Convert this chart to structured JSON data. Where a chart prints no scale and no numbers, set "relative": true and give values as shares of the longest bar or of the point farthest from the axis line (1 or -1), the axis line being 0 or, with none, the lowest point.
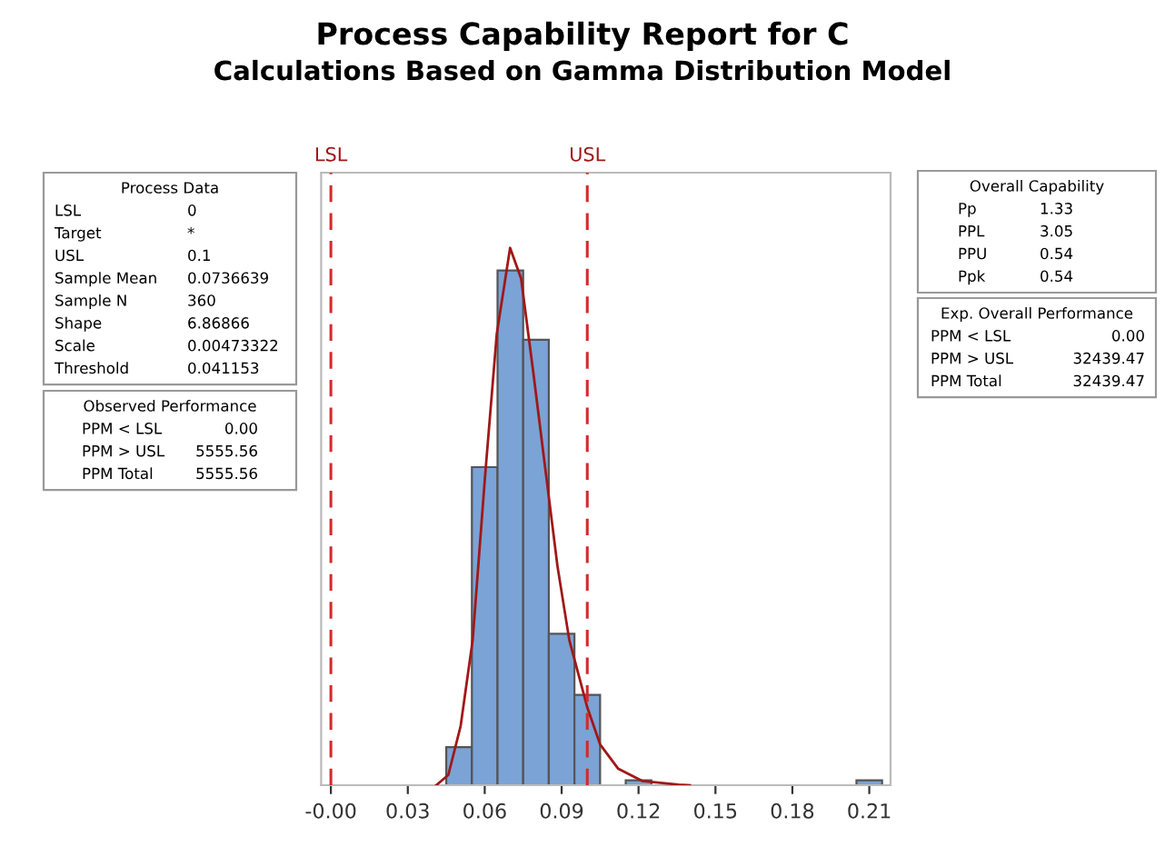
{
  "chart_data": {
    "type": "histogram",
    "title": "Process Capability Report for C",
    "subtitle": "Calculations Based on Gamma Distribution Model",
    "relative": true,
    "tick_labels": "x",
    "grid": false,
    "xlim": [
      -0.0038,
      0.2183
    ],
    "xticks": [
      {
        "value": 0,
        "label": "-0.00"
      },
      0.03,
      0.06,
      0.09,
      0.12,
      0.15,
      0.18,
      0.21
    ],
    "series": [
      {
        "type": "histogram",
        "color": "#7ba3d6",
        "bins": [
          0.045,
          0.055,
          0.065,
          0.075,
          0.085,
          0.095,
          0.105,
          0.115,
          0.125,
          0.135,
          0.145,
          0.155,
          0.165,
          0.175,
          0.185,
          0.195,
          0.205,
          0.215
        ],
        "values": [
          0.071,
          0.592,
          0.958,
          0.829,
          0.282,
          0.168,
          0,
          0.009,
          0,
          0,
          0,
          0,
          0,
          0,
          0,
          0,
          0.009
        ]
      },
      {
        "type": "line",
        "color": "#a01818",
        "x": [
          0.0411,
          0.0458,
          0.0506,
          0.0553,
          0.06,
          0.0647,
          0.0699,
          0.0742,
          0.0789,
          0.0836,
          0.0884,
          0.093,
          0.1,
          0.105,
          0.112,
          0.1214,
          0.1356,
          0.14
        ],
        "values": [
          0,
          0.019,
          0.11,
          0.27,
          0.567,
          0.84,
          1.0,
          0.943,
          0.77,
          0.59,
          0.407,
          0.27,
          0.145,
          0.076,
          0.031,
          0.008,
          0.001,
          0
        ]
      }
    ],
    "ref_lines": [
      {
        "axis": "x",
        "value": 0,
        "label": "LSL",
        "color": "#d42a2a",
        "line_style": "dashed"
      },
      {
        "axis": "x",
        "value": 0.1,
        "label": "USL",
        "color": "#d42a2a",
        "line_style": "dashed"
      }
    ],
    "annotations": [
      "Process Data\nLSL\t0\nTarget\t*\nUSL\t0.1\nSample Mean\t0.0736639\nSample N\t360\nShape\t6.86866\nScale\t0.00473322\nThreshold\t0.041153",
      "Observed Performance\nPPM < LSL\t0.00\nPPM > USL\t5555.56\nPPM Total\t5555.56",
      "Overall Capability\nPp\t1.33\nPPL\t3.05\nPPU\t0.54\nPpk\t0.54",
      "Exp. Overall Performance\nPPM < LSL\t0.00\nPPM > USL\t32439.47\nPPM Total\t32439.47"
    ]
  }
}
